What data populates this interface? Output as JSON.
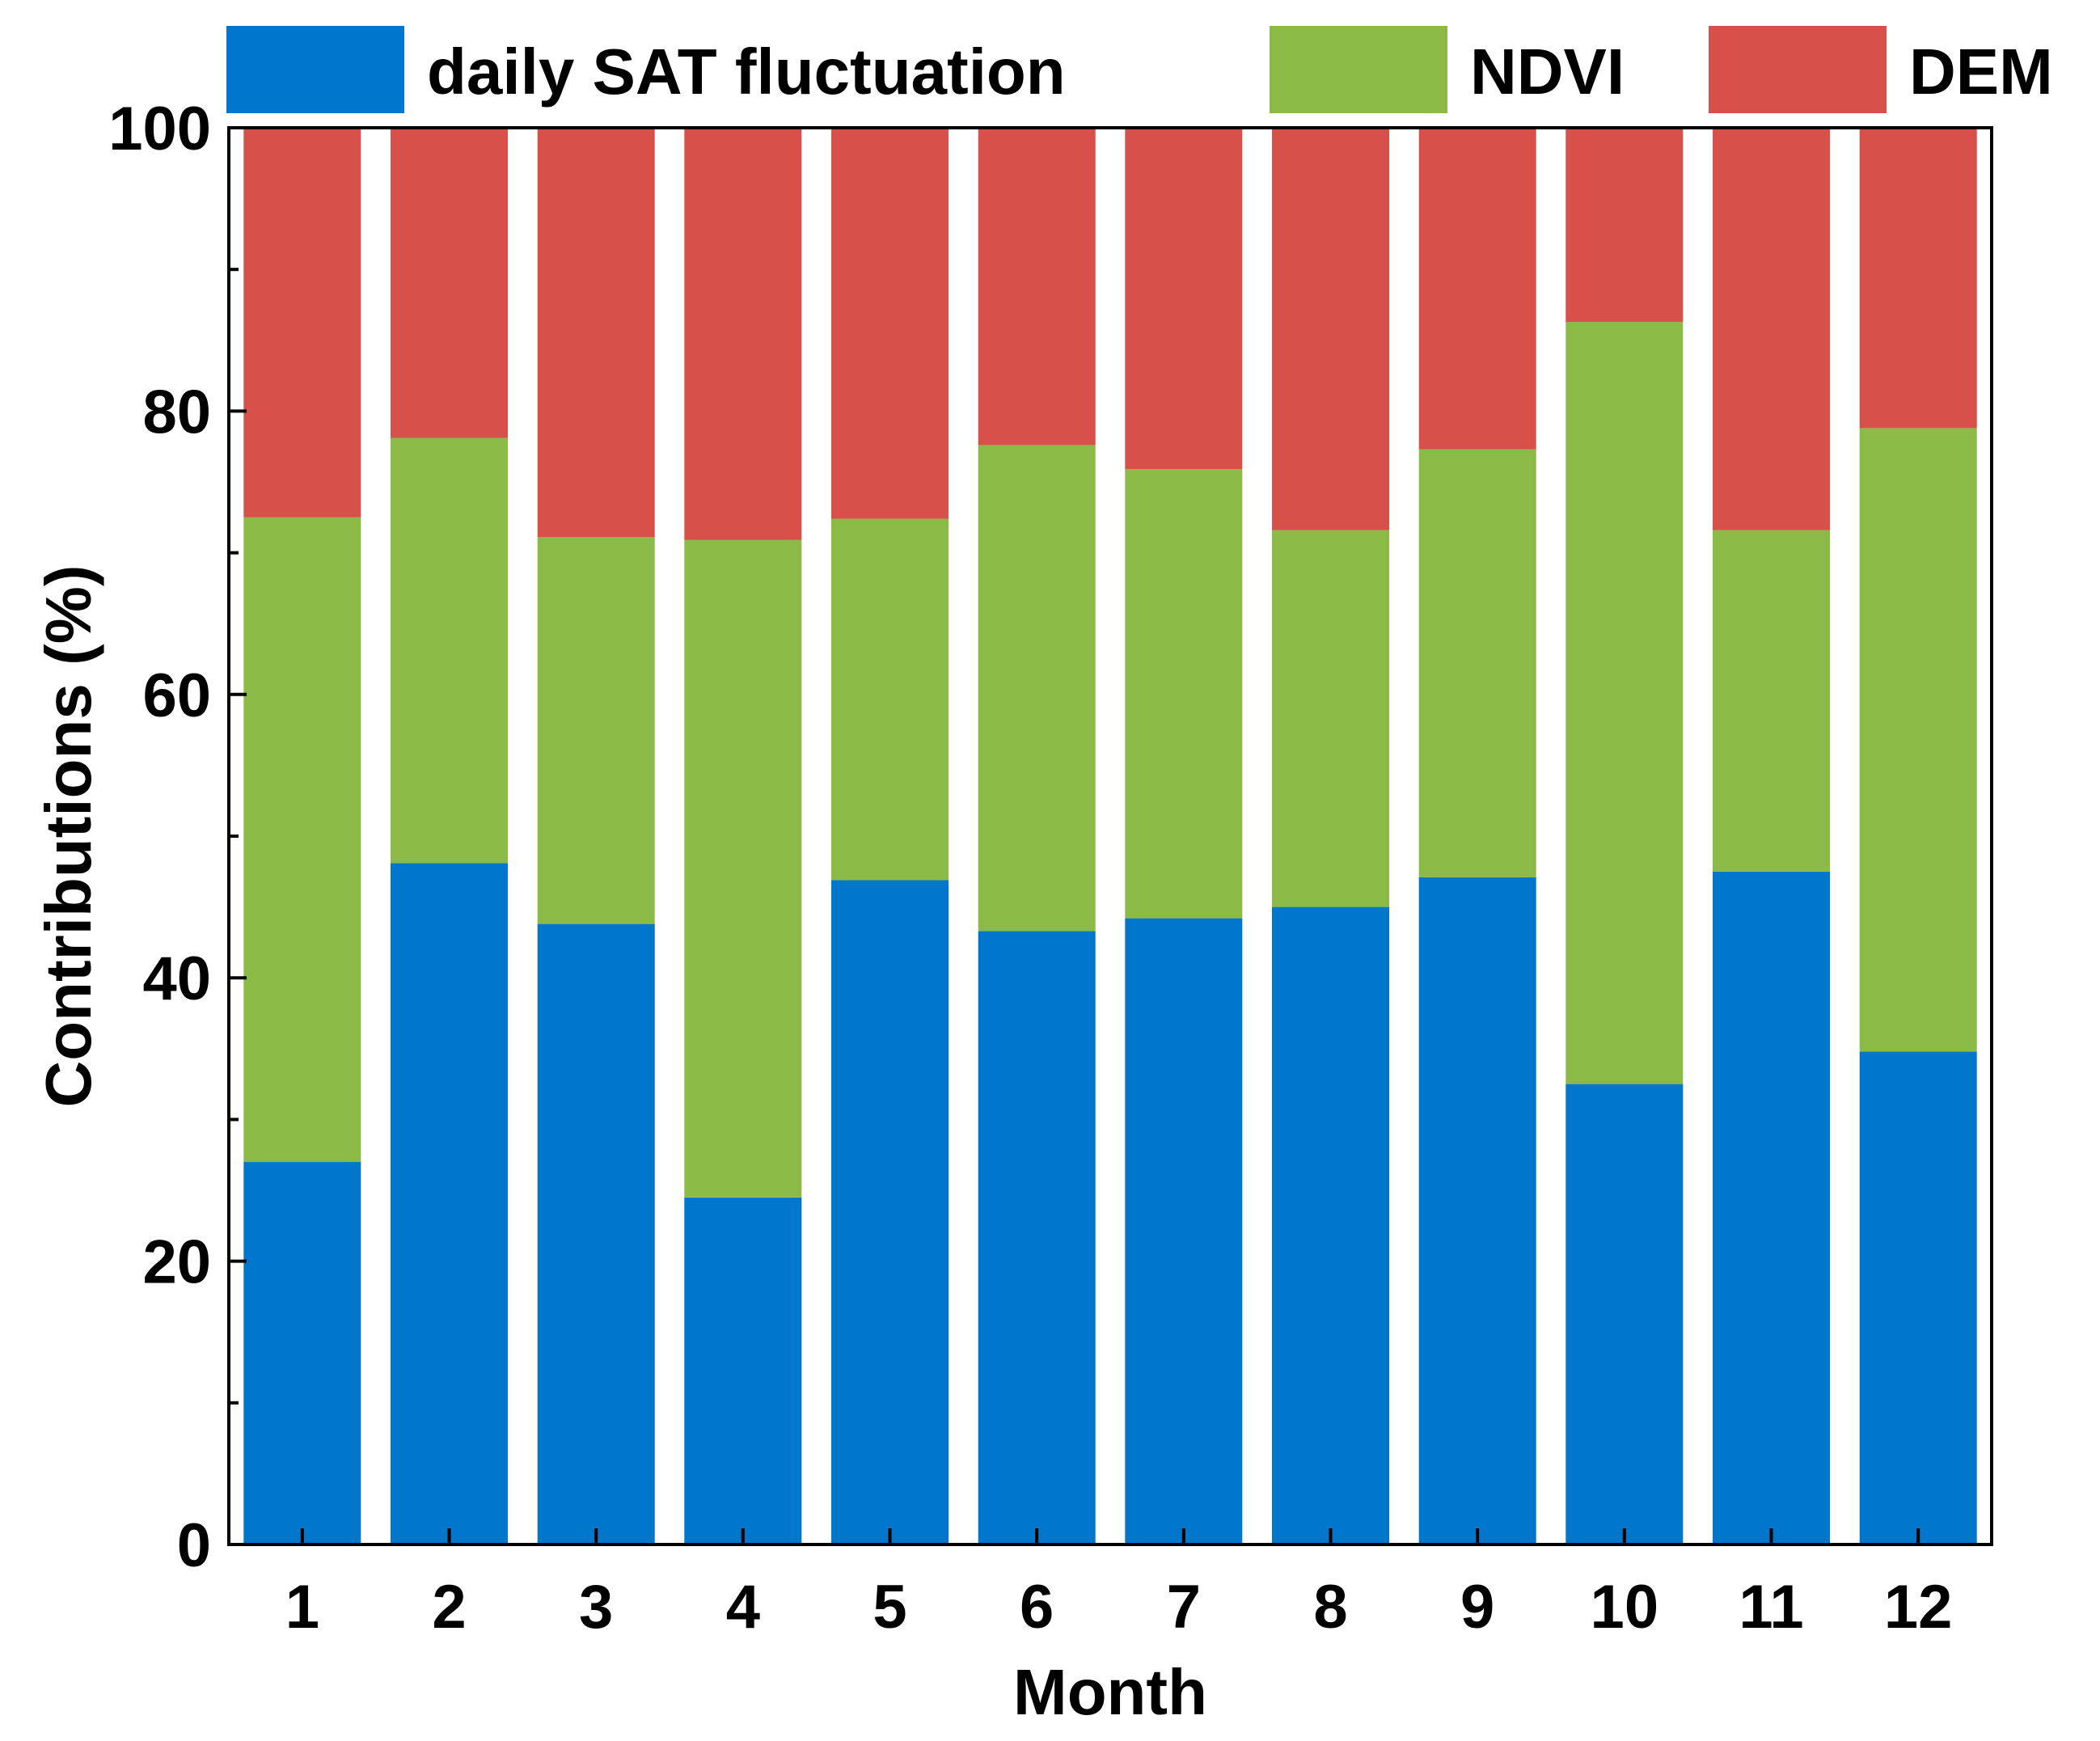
{
  "chart_data": {
    "type": "bar",
    "stacked": true,
    "title": "",
    "xlabel": "Month",
    "ylabel": "Contributions (%)",
    "ylim": [
      0,
      100
    ],
    "yticks": [
      0,
      20,
      40,
      60,
      80,
      100
    ],
    "grid": false,
    "legend_position": "top",
    "categories": [
      "1",
      "2",
      "3",
      "4",
      "5",
      "6",
      "7",
      "8",
      "9",
      "10",
      "11",
      "12"
    ],
    "series": [
      {
        "name": "daily SAT fluctuation",
        "color": "#0076CC",
        "values": [
          27.0,
          48.1,
          43.8,
          24.5,
          46.9,
          43.3,
          44.2,
          45.0,
          47.1,
          32.5,
          47.5,
          34.8
        ]
      },
      {
        "name": "NDVI",
        "color": "#8BBB46",
        "values": [
          45.5,
          30.0,
          27.3,
          46.4,
          25.5,
          34.3,
          31.7,
          26.6,
          30.2,
          53.8,
          24.1,
          44.0
        ]
      },
      {
        "name": "DEM",
        "color": "#D8504A",
        "values": [
          27.5,
          21.9,
          28.9,
          29.1,
          27.6,
          22.4,
          24.1,
          28.4,
          22.7,
          13.7,
          28.4,
          21.2
        ]
      }
    ]
  }
}
